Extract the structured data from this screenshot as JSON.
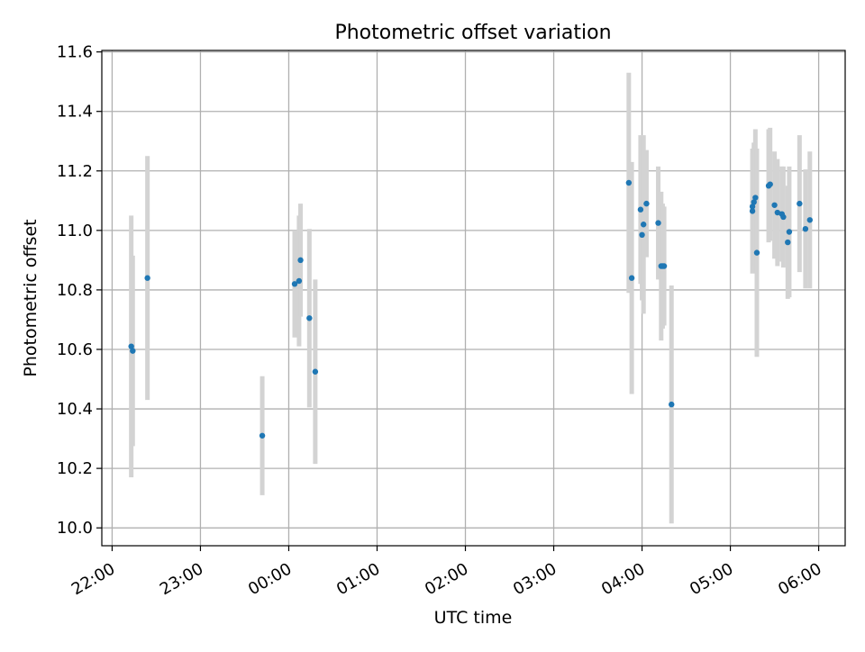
{
  "chart_data": {
    "type": "scatter",
    "title": "Photometric offset variation",
    "xlabel": "UTC time",
    "ylabel": "Photometric offset",
    "xlim": [
      "21:53",
      "06:18"
    ],
    "ylim": [
      9.94,
      11.605
    ],
    "xticks": [
      "22:00",
      "23:00",
      "00:00",
      "01:00",
      "02:00",
      "03:00",
      "04:00",
      "05:00",
      "06:00"
    ],
    "yticks": [
      "10.0",
      "10.2",
      "10.4",
      "10.6",
      "10.8",
      "11.0",
      "11.2",
      "11.4",
      "11.6"
    ],
    "grid": true,
    "point_color": "#1f77b4",
    "errorbar_color": "#d3d3d3",
    "points": [
      {
        "x": "22:13",
        "y": 10.61,
        "err": 0.44
      },
      {
        "x": "22:14",
        "y": 10.595,
        "err": 0.32
      },
      {
        "x": "22:24",
        "y": 10.84,
        "err": 0.41
      },
      {
        "x": "23:42",
        "y": 10.31,
        "err": 0.2
      },
      {
        "x": "00:04",
        "y": 10.82,
        "err": 0.18
      },
      {
        "x": "00:07",
        "y": 10.83,
        "err": 0.22
      },
      {
        "x": "00:08",
        "y": 10.9,
        "err": 0.19
      },
      {
        "x": "00:14",
        "y": 10.705,
        "err": 0.3
      },
      {
        "x": "00:18",
        "y": 10.525,
        "err": 0.31
      },
      {
        "x": "03:51",
        "y": 11.16,
        "err": 0.37
      },
      {
        "x": "03:53",
        "y": 10.84,
        "err": 0.39
      },
      {
        "x": "03:59",
        "y": 11.07,
        "err": 0.25
      },
      {
        "x": "04:00",
        "y": 10.985,
        "err": 0.22
      },
      {
        "x": "04:01",
        "y": 11.02,
        "err": 0.3
      },
      {
        "x": "04:03",
        "y": 11.09,
        "err": 0.18
      },
      {
        "x": "04:11",
        "y": 11.025,
        "err": 0.19
      },
      {
        "x": "04:13",
        "y": 10.88,
        "err": 0.25
      },
      {
        "x": "04:14",
        "y": 10.88,
        "err": 0.21
      },
      {
        "x": "04:15",
        "y": 10.88,
        "err": 0.2
      },
      {
        "x": "04:20",
        "y": 10.415,
        "err": 0.4
      },
      {
        "x": "05:15",
        "y": 11.065,
        "err": 0.21
      },
      {
        "x": "05:15",
        "y": 11.08,
        "err": 0.18
      },
      {
        "x": "05:16",
        "y": 11.095,
        "err": 0.2
      },
      {
        "x": "05:17",
        "y": 11.11,
        "err": 0.23
      },
      {
        "x": "05:18",
        "y": 10.925,
        "err": 0.35
      },
      {
        "x": "05:26",
        "y": 11.15,
        "err": 0.19
      },
      {
        "x": "05:27",
        "y": 11.155,
        "err": 0.19
      },
      {
        "x": "05:30",
        "y": 11.085,
        "err": 0.18
      },
      {
        "x": "05:32",
        "y": 11.06,
        "err": 0.18
      },
      {
        "x": "05:35",
        "y": 11.055,
        "err": 0.16
      },
      {
        "x": "05:36",
        "y": 11.045,
        "err": 0.17
      },
      {
        "x": "05:39",
        "y": 10.96,
        "err": 0.19
      },
      {
        "x": "05:40",
        "y": 10.995,
        "err": 0.22
      },
      {
        "x": "05:47",
        "y": 11.09,
        "err": 0.23
      },
      {
        "x": "05:51",
        "y": 11.005,
        "err": 0.2
      },
      {
        "x": "05:54",
        "y": 11.035,
        "err": 0.23
      }
    ]
  }
}
